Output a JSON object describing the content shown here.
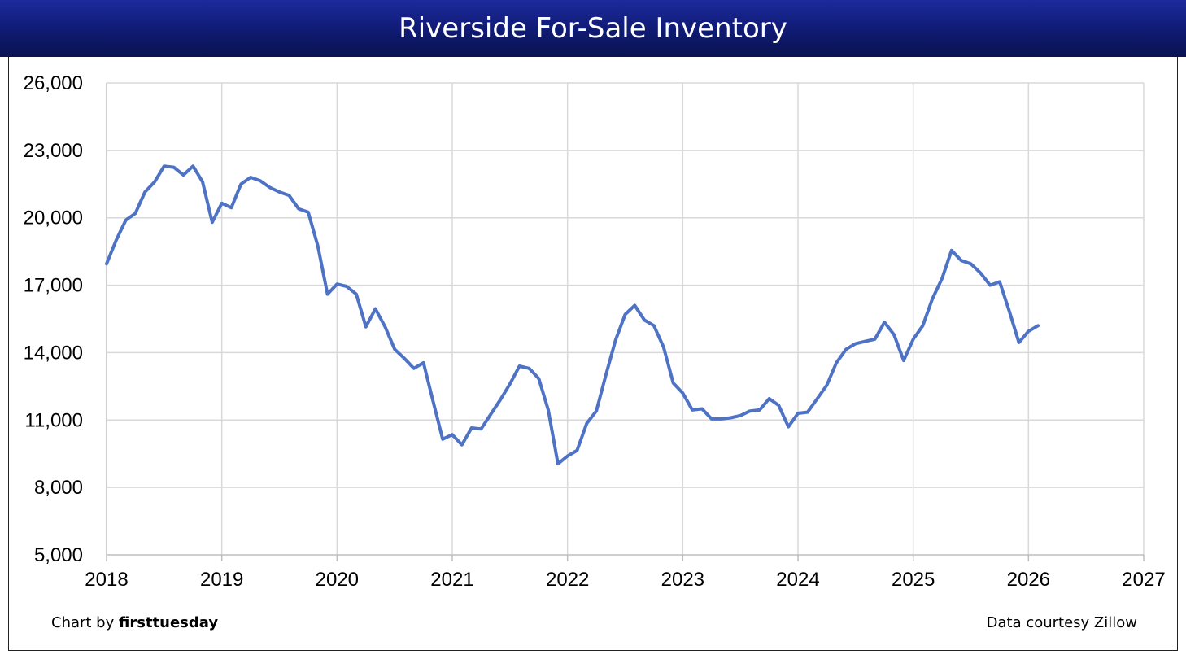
{
  "chart_data": {
    "type": "line",
    "title": "Riverside For-Sale Inventory",
    "xlabel": "",
    "ylabel": "",
    "xlim": [
      2018,
      2027
    ],
    "ylim": [
      5000,
      26000
    ],
    "x_ticks": [
      "2018",
      "2019",
      "2020",
      "2021",
      "2022",
      "2023",
      "2024",
      "2025",
      "2026",
      "2027"
    ],
    "y_ticks": [
      "5,000",
      "8,000",
      "11,000",
      "14,000",
      "17,000",
      "20,000",
      "23,000",
      "26,000"
    ],
    "grid": true,
    "series": [
      {
        "name": "Riverside For-Sale Inventory",
        "color": "#4e72c4",
        "x": [
          2018.0,
          2018.083,
          2018.167,
          2018.25,
          2018.333,
          2018.417,
          2018.5,
          2018.583,
          2018.667,
          2018.75,
          2018.833,
          2018.917,
          2019.0,
          2019.083,
          2019.167,
          2019.25,
          2019.333,
          2019.417,
          2019.5,
          2019.583,
          2019.667,
          2019.75,
          2019.833,
          2019.917,
          2020.0,
          2020.083,
          2020.167,
          2020.25,
          2020.333,
          2020.417,
          2020.5,
          2020.583,
          2020.667,
          2020.75,
          2020.833,
          2020.917,
          2021.0,
          2021.083,
          2021.167,
          2021.25,
          2021.333,
          2021.417,
          2021.5,
          2021.583,
          2021.667,
          2021.75,
          2021.833,
          2021.917,
          2022.0,
          2022.083,
          2022.167,
          2022.25,
          2022.333,
          2022.417,
          2022.5,
          2022.583,
          2022.667,
          2022.75,
          2022.833,
          2022.917,
          2023.0,
          2023.083,
          2023.167,
          2023.25,
          2023.333,
          2023.417,
          2023.5,
          2023.583,
          2023.667,
          2023.75,
          2023.833,
          2023.917,
          2024.0,
          2024.083,
          2024.167,
          2024.25,
          2024.333,
          2024.417,
          2024.5,
          2024.583,
          2024.667,
          2024.75,
          2024.833,
          2024.917,
          2025.0,
          2025.083,
          2025.167,
          2025.25,
          2025.333,
          2025.417,
          2025.5,
          2025.583,
          2025.667,
          2025.75,
          2025.833,
          2025.917,
          2026.0,
          2026.083
        ],
        "values": [
          17950,
          19000,
          19900,
          20200,
          21150,
          21600,
          22300,
          22250,
          21900,
          22300,
          21600,
          19800,
          20650,
          20450,
          21500,
          21800,
          21650,
          21350,
          21150,
          21000,
          20400,
          20250,
          18750,
          16600,
          17050,
          16950,
          16600,
          15150,
          15950,
          15150,
          14150,
          13750,
          13300,
          13550,
          11850,
          10150,
          10350,
          9900,
          10650,
          10600,
          11250,
          11900,
          12600,
          13400,
          13300,
          12850,
          11450,
          9050,
          9400,
          9650,
          10850,
          11400,
          13000,
          14550,
          15700,
          16100,
          15450,
          15200,
          14250,
          12650,
          12200,
          11450,
          11500,
          11050,
          11050,
          11100,
          11200,
          11400,
          11450,
          11950,
          11650,
          10700,
          11300,
          11350,
          11950,
          12550,
          13550,
          14150,
          14400,
          14500,
          14600,
          15350,
          14800,
          13650,
          14600,
          15200,
          16400,
          17300,
          18550,
          18100,
          17950,
          17550,
          17000,
          17150,
          15850,
          14450,
          14950,
          15200
        ]
      }
    ]
  },
  "footer": {
    "credit_prefix": "Chart by",
    "credit_brand": "firsttuesday",
    "source": "Data courtesy Zillow"
  }
}
